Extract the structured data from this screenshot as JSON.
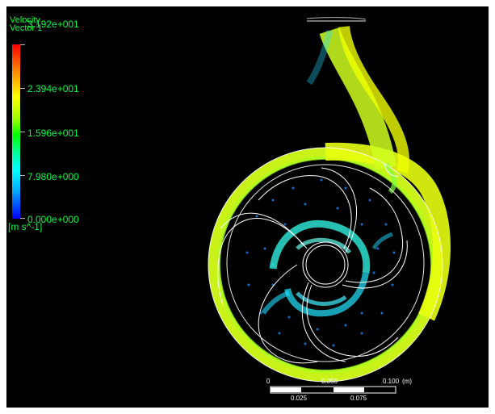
{
  "legend": {
    "title_line1": "Velocity",
    "title_line2": "Vector 1",
    "ticks": [
      "3.192e+001",
      "2.394e+001",
      "1.596e+001",
      "7.980e+000",
      "0.000e+000"
    ],
    "units": "[m s^-1]"
  },
  "scale_bar": {
    "top_labels": [
      "0",
      "0.050",
      "0.100",
      "(m)"
    ],
    "bottom_labels": [
      "0.025",
      "0.075"
    ]
  },
  "colors": {
    "background": "#000000",
    "legend_text": "#00ff44",
    "high_velocity": "#ff0000",
    "mid_high_velocity": "#ffff00",
    "mid_velocity": "#00ff00",
    "low_mid_velocity": "#00ffff",
    "low_velocity": "#0000ff",
    "geometry_lines": "#ffffff"
  }
}
